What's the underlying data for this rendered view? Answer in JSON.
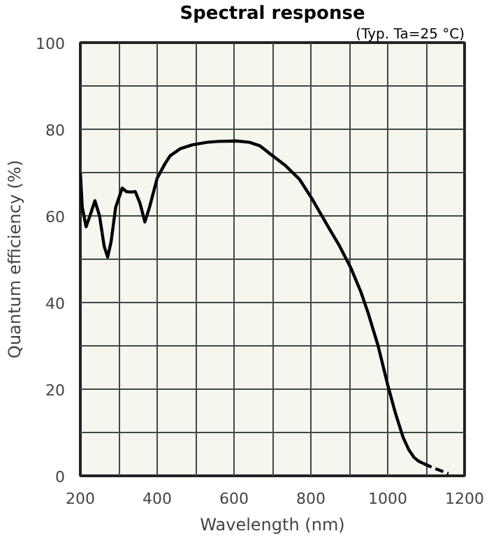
{
  "chart_data": {
    "type": "line",
    "title": "Spectral response",
    "annotations": [
      "(Typ. Ta=25 °C)"
    ],
    "xlabel": "Wavelength (nm)",
    "ylabel": "Quantum efficiency (%)",
    "xlim": [
      200,
      1200
    ],
    "xticks": [
      200,
      400,
      600,
      800,
      1000,
      1200
    ],
    "ylim": [
      0,
      100
    ],
    "yticks": [
      0,
      20,
      40,
      60,
      80,
      100
    ],
    "grid": true,
    "series": [
      {
        "color": "#000000",
        "line_style": "solid",
        "x": [
          200,
          205,
          215,
          225,
          238,
          250,
          262,
          271,
          280,
          292,
          309,
          320,
          331,
          343,
          355,
          368,
          380,
          400,
          420,
          434,
          460,
          491,
          530,
          560,
          606,
          640,
          667,
          697,
          734,
          770,
          802,
          847,
          875,
          904,
          930,
          949,
          975,
          1000,
          1020,
          1040,
          1055,
          1068,
          1080,
          1094
        ],
        "values": [
          70,
          62,
          57.5,
          60,
          63.5,
          60,
          53,
          50.5,
          54,
          62,
          66.4,
          65.6,
          65.5,
          65.6,
          63,
          58.6,
          62,
          68.7,
          72,
          73.9,
          75.5,
          76.4,
          77,
          77.2,
          77.3,
          77,
          76.2,
          74.1,
          71.6,
          68.5,
          64.1,
          57.2,
          53,
          48,
          42.5,
          37.6,
          30,
          21,
          14.5,
          8.9,
          6,
          4.3,
          3.4,
          2.8
        ]
      },
      {
        "color": "#000000",
        "line_style": "dashed",
        "x": [
          1094,
          1120,
          1158
        ],
        "values": [
          2.8,
          1.8,
          0.5
        ]
      }
    ]
  }
}
